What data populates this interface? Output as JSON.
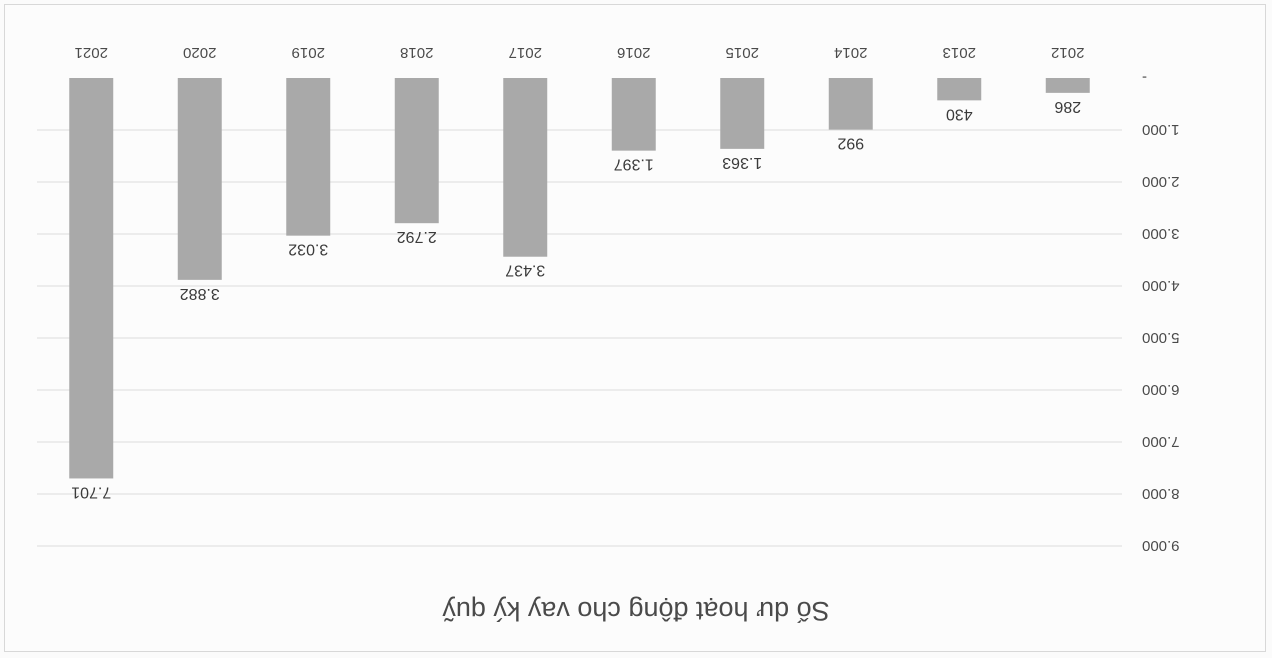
{
  "chart_data": {
    "type": "bar",
    "title": "Số dư hoạt động cho vay ký quỹ",
    "categories": [
      "2012",
      "2013",
      "2014",
      "2015",
      "2016",
      "2017",
      "2018",
      "2019",
      "2020",
      "2021"
    ],
    "values": [
      286,
      430,
      992,
      1363,
      1397,
      3437,
      2792,
      3032,
      3882,
      7701
    ],
    "value_labels": [
      "286",
      "430",
      "992",
      "1.363",
      "1.397",
      "3.437",
      "2.792",
      "3.032",
      "3.882",
      "7.701"
    ],
    "ylim": [
      0,
      9000
    ],
    "yticks": [
      0,
      1000,
      2000,
      3000,
      4000,
      5000,
      6000,
      7000,
      8000,
      9000
    ],
    "ytick_labels": [
      "-",
      "1.000",
      "2.000",
      "3.000",
      "4.000",
      "5.000",
      "6.000",
      "7.000",
      "8.000",
      "9.000"
    ],
    "grid": true,
    "bar_color": "#a9a9a9",
    "orientation": "rotated-180"
  }
}
